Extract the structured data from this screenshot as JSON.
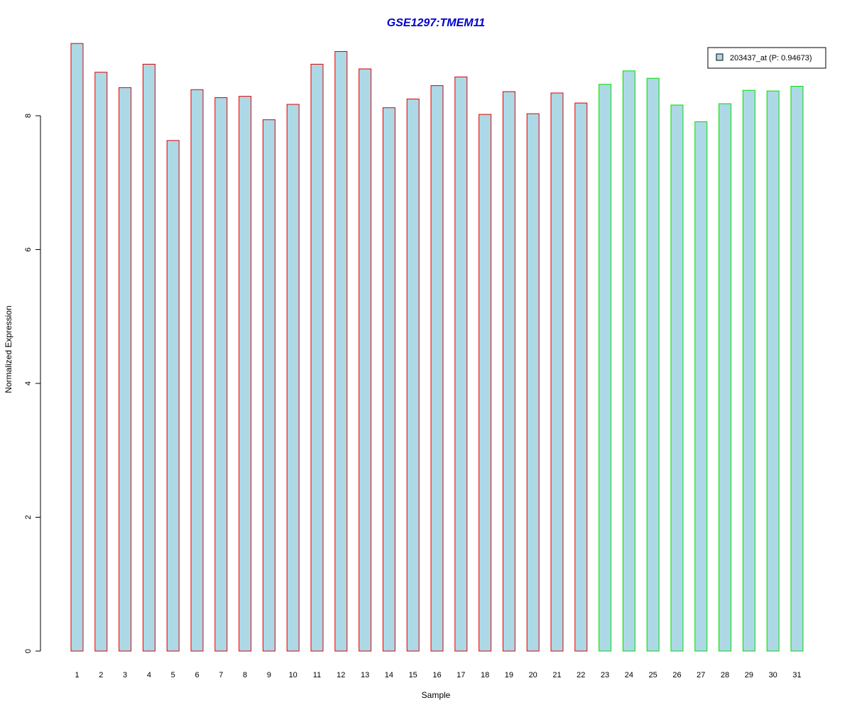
{
  "chart_data": {
    "type": "bar",
    "title": "GSE1297:TMEM11",
    "xlabel": "Sample",
    "ylabel": "Normalized Expression",
    "ylim": [
      0,
      9.1
    ],
    "y_ticks": [
      0,
      2,
      4,
      6,
      8
    ],
    "grid": false,
    "legend": {
      "placement": "top-right",
      "entries": [
        "203437_at (P: 0.94673)"
      ]
    },
    "categories": [
      "1",
      "2",
      "3",
      "4",
      "5",
      "6",
      "7",
      "8",
      "9",
      "10",
      "11",
      "12",
      "13",
      "14",
      "15",
      "16",
      "17",
      "18",
      "19",
      "20",
      "21",
      "22",
      "23",
      "24",
      "25",
      "26",
      "27",
      "28",
      "29",
      "30",
      "31"
    ],
    "series": [
      {
        "values": [
          9.08,
          8.65,
          8.42,
          8.77,
          7.63,
          8.39,
          8.27,
          8.29,
          7.94,
          8.17,
          8.77,
          8.96,
          8.7,
          8.12,
          8.25,
          8.45,
          8.58,
          8.02,
          8.36,
          8.03,
          8.34,
          8.19,
          8.47,
          8.67,
          8.56,
          8.16,
          7.91,
          8.18,
          8.38,
          8.37,
          8.44
        ]
      }
    ],
    "group_outline_colors": [
      "#dd0000",
      "#dd0000",
      "#dd0000",
      "#dd0000",
      "#dd0000",
      "#dd0000",
      "#dd0000",
      "#dd0000",
      "#dd0000",
      "#dd0000",
      "#dd0000",
      "#dd0000",
      "#dd0000",
      "#dd0000",
      "#dd0000",
      "#dd0000",
      "#dd0000",
      "#dd0000",
      "#dd0000",
      "#dd0000",
      "#dd0000",
      "#dd0000",
      "#00dd00",
      "#00dd00",
      "#00dd00",
      "#00dd00",
      "#00dd00",
      "#00dd00",
      "#00dd00",
      "#00dd00",
      "#00dd00"
    ],
    "colors": {
      "bar_fill": "#add8e6",
      "title": "#0000cc",
      "axis": "#000000"
    }
  }
}
